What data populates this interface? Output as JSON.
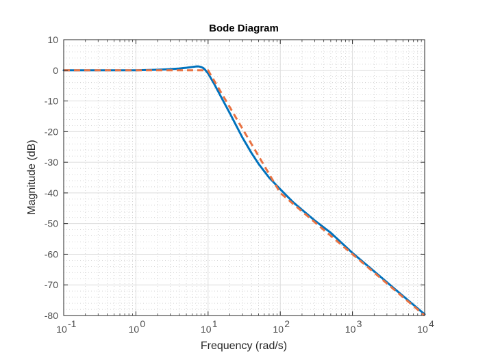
{
  "chart_data": {
    "type": "line",
    "title": "Bode Diagram",
    "xlabel": "Frequency  (rad/s)",
    "ylabel": "Magnitude (dB)",
    "xscale": "log",
    "xlim": [
      0.1,
      10000
    ],
    "ylim": [
      -80,
      10
    ],
    "grid": true,
    "x_tick_labels": [
      {
        "base": "10",
        "exp": "-1"
      },
      {
        "base": "10",
        "exp": "0"
      },
      {
        "base": "10",
        "exp": "1"
      },
      {
        "base": "10",
        "exp": "2"
      },
      {
        "base": "10",
        "exp": "3"
      },
      {
        "base": "10",
        "exp": "4"
      }
    ],
    "y_ticks": [
      10,
      0,
      -10,
      -20,
      -30,
      -40,
      -50,
      -60,
      -70,
      -80
    ],
    "y_tick_labels": [
      "10",
      "0",
      "-10",
      "-20",
      "-30",
      "-40",
      "-50",
      "-60",
      "-70",
      "-80"
    ],
    "series": [
      {
        "color": "#0072bd",
        "style": "solid",
        "x": [
          0.1,
          1,
          2,
          3,
          4,
          5,
          6,
          7,
          7.5,
          8,
          8.5,
          9,
          10,
          12,
          15,
          20,
          30,
          40,
          50,
          70,
          100,
          150,
          200,
          300,
          500,
          1000,
          2000,
          5000,
          10000
        ],
        "y": [
          0,
          0,
          0.2,
          0.4,
          0.6,
          0.85,
          1.1,
          1.3,
          1.25,
          1.1,
          0.8,
          0.3,
          -1.0,
          -4.2,
          -8.5,
          -14,
          -22,
          -27,
          -30.5,
          -35,
          -38.8,
          -43,
          -45.5,
          -49,
          -53,
          -59.6,
          -65.6,
          -73.6,
          -79.6
        ]
      },
      {
        "color": "#e97242",
        "style": "dashed",
        "x": [
          0.1,
          10,
          100,
          10000
        ],
        "y": [
          0,
          0,
          -40,
          -80
        ]
      }
    ]
  }
}
